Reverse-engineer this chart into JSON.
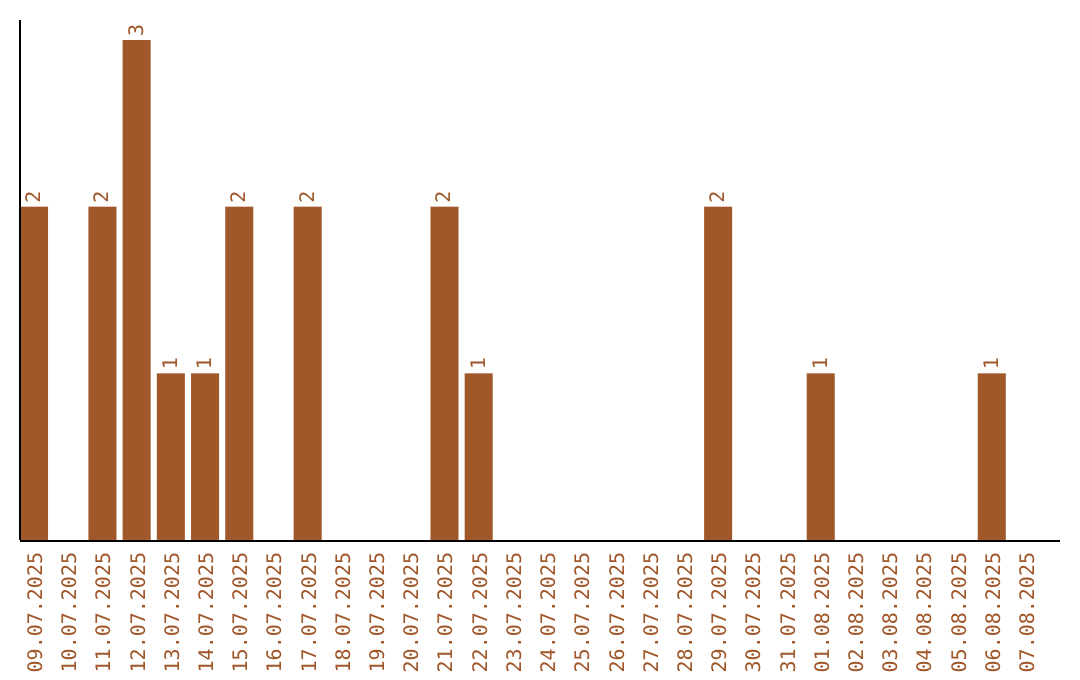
{
  "chart_data": {
    "type": "bar",
    "categories": [
      "09.07.2025",
      "10.07.2025",
      "11.07.2025",
      "12.07.2025",
      "13.07.2025",
      "14.07.2025",
      "15.07.2025",
      "16.07.2025",
      "17.07.2025",
      "18.07.2025",
      "19.07.2025",
      "20.07.2025",
      "21.07.2025",
      "22.07.2025",
      "23.07.2025",
      "24.07.2025",
      "25.07.2025",
      "26.07.2025",
      "27.07.2025",
      "28.07.2025",
      "29.07.2025",
      "30.07.2025",
      "31.07.2025",
      "01.08.2025",
      "02.08.2025",
      "03.08.2025",
      "04.08.2025",
      "05.08.2025",
      "06.08.2025",
      "07.08.2025"
    ],
    "values": [
      2,
      0,
      2,
      3,
      1,
      1,
      2,
      0,
      2,
      0,
      0,
      0,
      2,
      1,
      0,
      0,
      0,
      0,
      0,
      0,
      2,
      0,
      0,
      1,
      0,
      0,
      0,
      0,
      1,
      0
    ],
    "value_labels": [
      "2",
      null,
      "2",
      "3",
      "1",
      "1",
      "2",
      null,
      "2",
      null,
      null,
      null,
      "2",
      "1",
      null,
      null,
      null,
      null,
      null,
      null,
      "2",
      null,
      null,
      "1",
      null,
      null,
      null,
      null,
      "1",
      null
    ],
    "color": "#a0572a"
  }
}
